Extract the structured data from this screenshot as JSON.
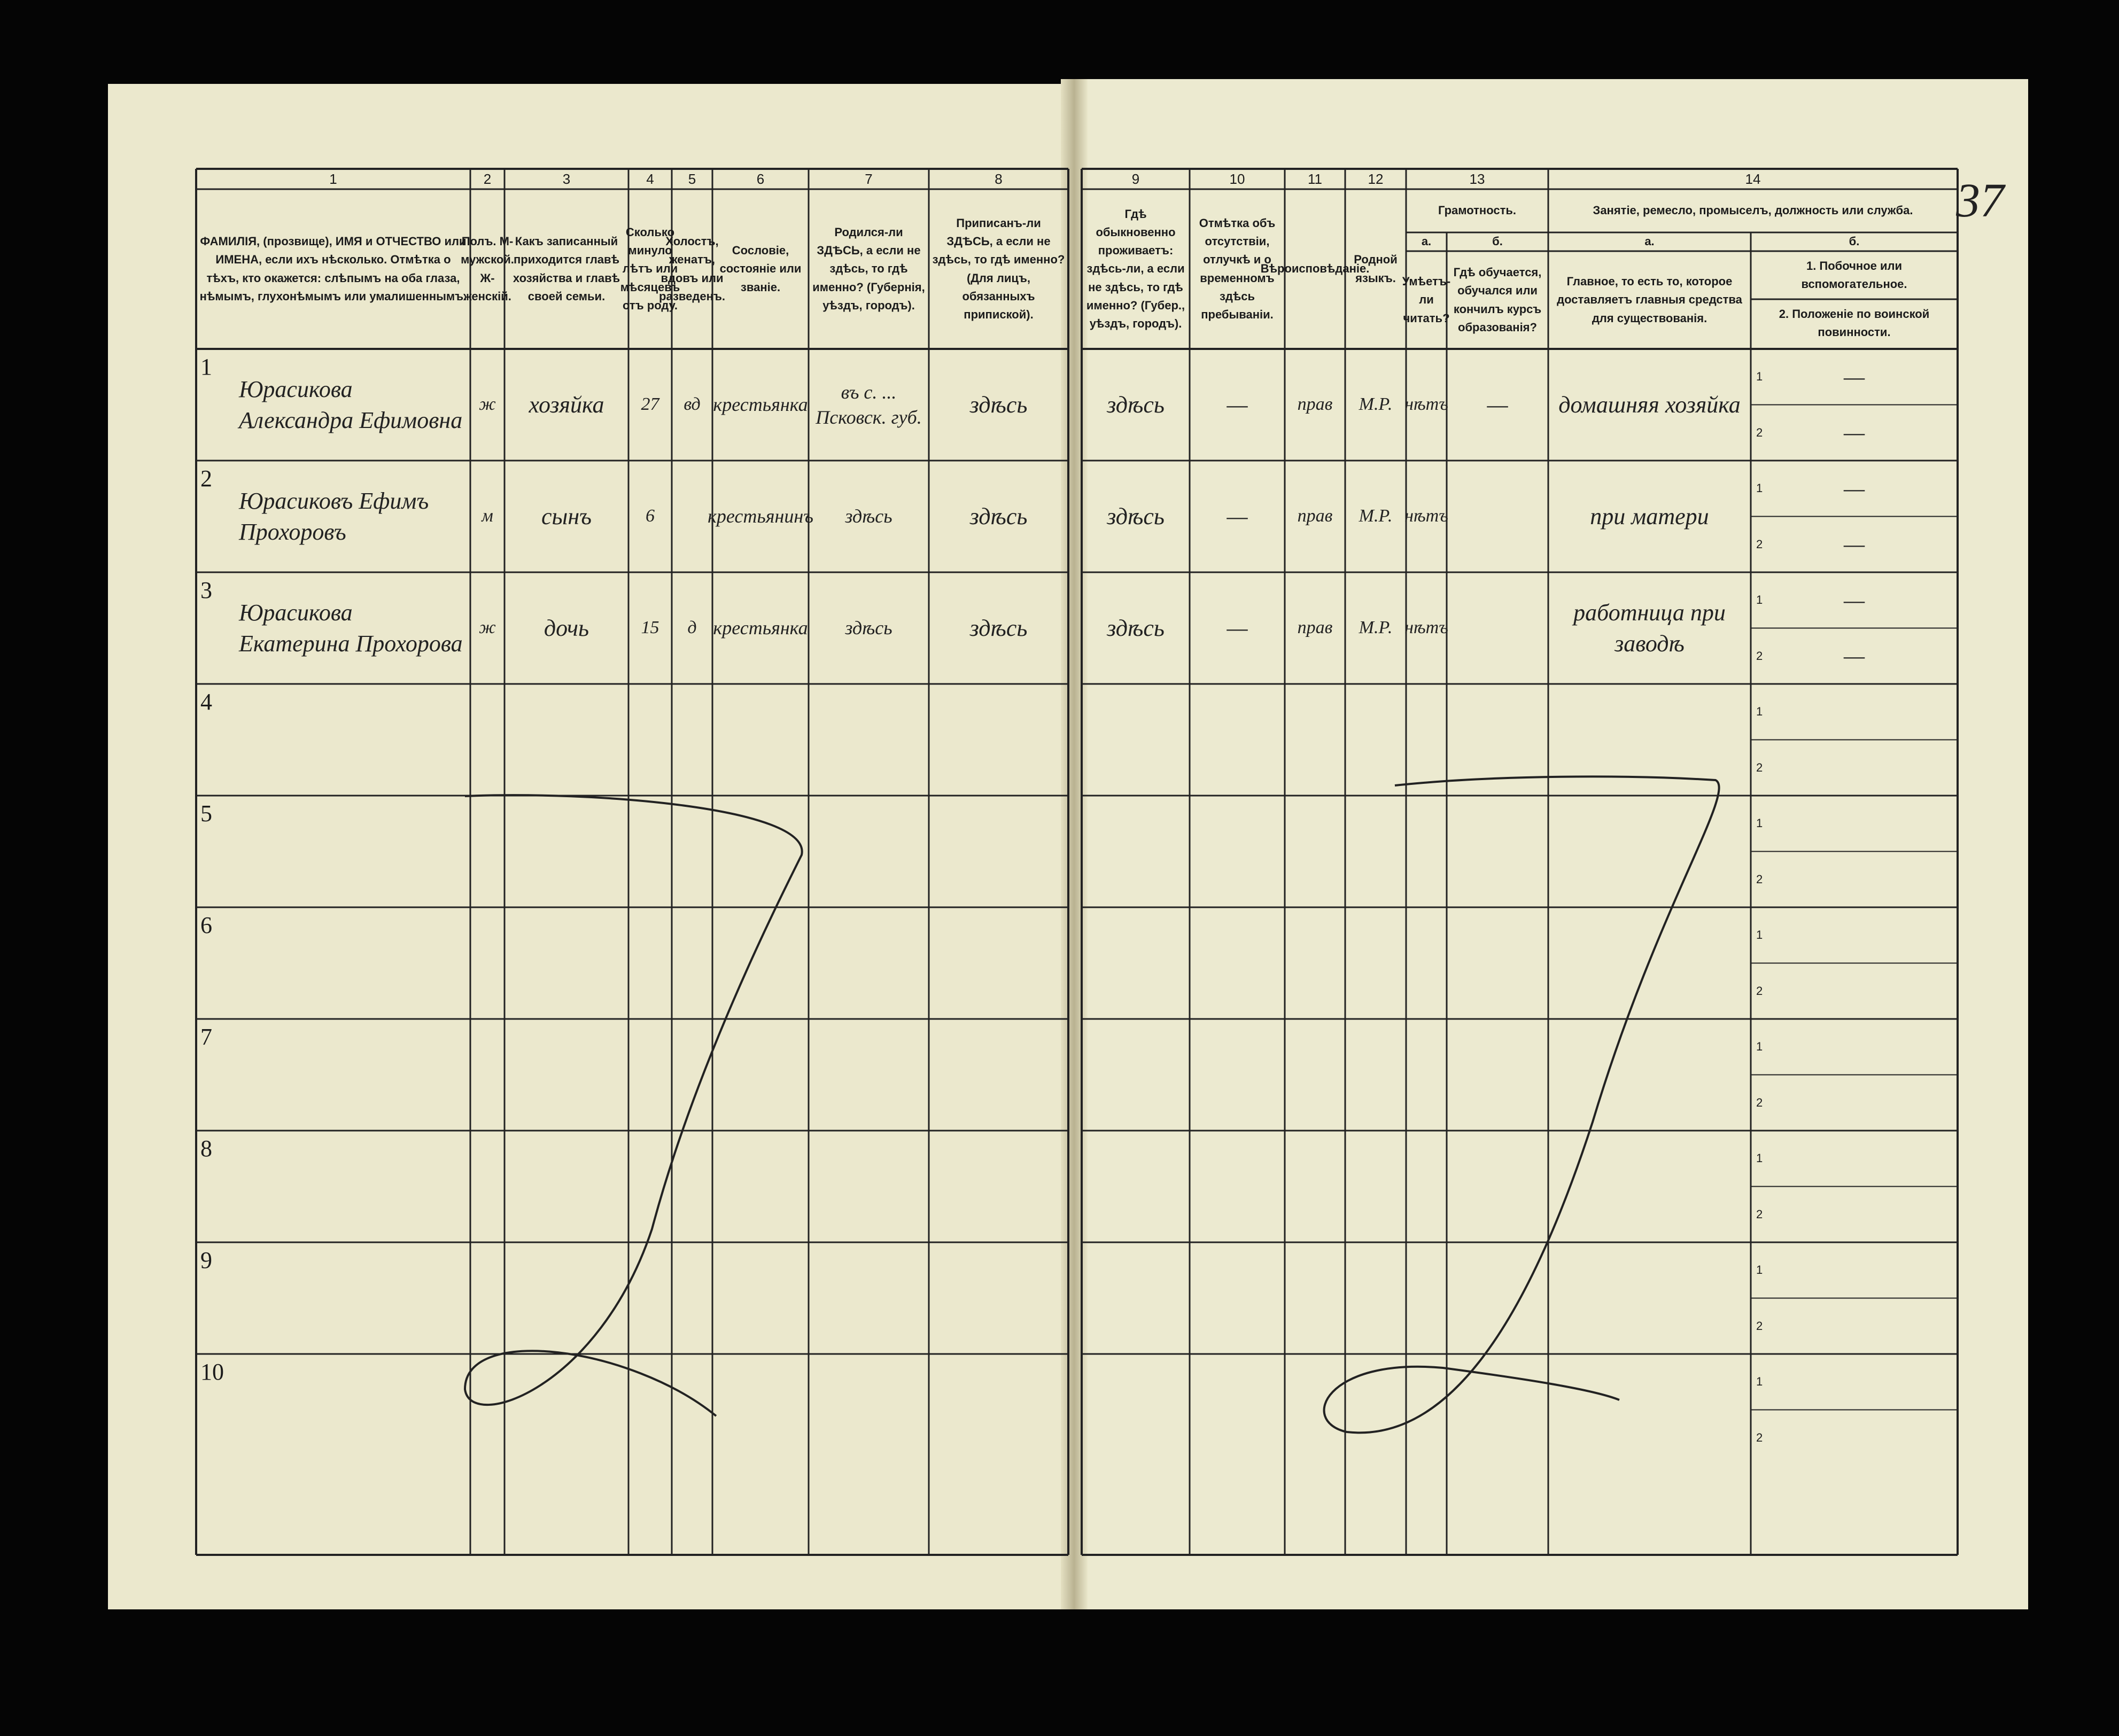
{
  "page_number": "37",
  "columns": [
    {
      "number": "1",
      "header": "ФАМИЛІЯ, (прозвище), ИМЯ и ОТЧЕСТВО или ИМЕНА, если ихъ нѣсколько. Отмѣтка о тѣхъ, кто окажется: слѣпымъ на оба глаза, нѣмымъ, глухонѣмымъ или умалишеннымъ."
    },
    {
      "number": "2",
      "header": "Полъ. М-мужской. Ж-женскій."
    },
    {
      "number": "3",
      "header": "Какъ записанный приходится главѣ хозяйства и главѣ своей семьи."
    },
    {
      "number": "4",
      "header": "Сколько минуло лѣтъ или мѣсяцевъ отъ роду."
    },
    {
      "number": "5",
      "header": "Холостъ, женатъ, вдовъ или разведенъ."
    },
    {
      "number": "6",
      "header": "Сословіе, состояніе или званіе."
    },
    {
      "number": "7",
      "header": "Родился-ли ЗДѢСЬ, а если не здѣсь, то гдѣ именно? (Губернія, уѣздъ, городъ)."
    },
    {
      "number": "8",
      "header": "Приписанъ-ли ЗДѢСЬ, а если не здѣсь, то гдѣ именно? (Для лицъ, обязанныхъ припиской)."
    },
    {
      "number": "9",
      "header": "Гдѣ обыкновенно проживаетъ: здѣсь-ли, а если не здѣсь, то гдѣ именно? (Губер., уѣздъ, городъ)."
    },
    {
      "number": "10",
      "header": "Отмѣтка объ отсутствіи, отлучкѣ и о временномъ здѣсь пребываніи."
    },
    {
      "number": "11",
      "header": "Вѣроисповѣданіе."
    },
    {
      "number": "12",
      "header": "Родной языкъ."
    },
    {
      "number": "13",
      "header": "Грамотность.",
      "sub": [
        {
          "letter": "а.",
          "header": "Умѣетъ-ли читать?"
        },
        {
          "letter": "б.",
          "header": "Гдѣ обучается, обучался или кончилъ курсъ образованія?"
        }
      ]
    },
    {
      "number": "14",
      "header": "Занятіе, ремесло, промыселъ, должность или служба.",
      "sub": [
        {
          "letter": "а.",
          "header": "Главное, то есть то, которое доставляетъ главныя средства для существованія."
        },
        {
          "letter": "б.",
          "lines": [
            "1. Побочное или вспомогательное.",
            "2. Положеніе по воинской повинности."
          ]
        }
      ]
    }
  ],
  "row_sublabels": [
    "1",
    "2"
  ],
  "rows": [
    {
      "number": "1",
      "cells": [
        "Юрасикова Александра Ефимовна",
        "ж",
        "хозяйка",
        "27",
        "вд",
        "крестьянка",
        "въ с. ... Псковск. губ.",
        "здѣсь",
        "здѣсь",
        "—",
        "прав",
        "М.Р.",
        "нѣтъ",
        "—",
        "домашняя хозяйка",
        "—",
        "—"
      ]
    },
    {
      "number": "2",
      "cells": [
        "Юрасиковъ Ефимъ Прохоровъ",
        "м",
        "сынъ",
        "6",
        null,
        "крестьянинъ",
        "здѣсь",
        "здѣсь",
        "здѣсь",
        "—",
        "прав",
        "М.Р.",
        "нѣтъ",
        null,
        "при матери",
        "—",
        "—"
      ]
    },
    {
      "number": "3",
      "cells": [
        "Юрасикова Екатерина Прохорова",
        "ж",
        "дочь",
        "15",
        "д",
        "крестьянка",
        "здѣсь",
        "здѣсь",
        "здѣсь",
        "—",
        "прав",
        "М.Р.",
        "нѣтъ",
        null,
        "работница при заводѣ",
        "—",
        "—"
      ]
    },
    {
      "number": "4"
    },
    {
      "number": "5"
    },
    {
      "number": "6"
    },
    {
      "number": "7"
    },
    {
      "number": "8"
    },
    {
      "number": "9"
    },
    {
      "number": "10"
    }
  ]
}
